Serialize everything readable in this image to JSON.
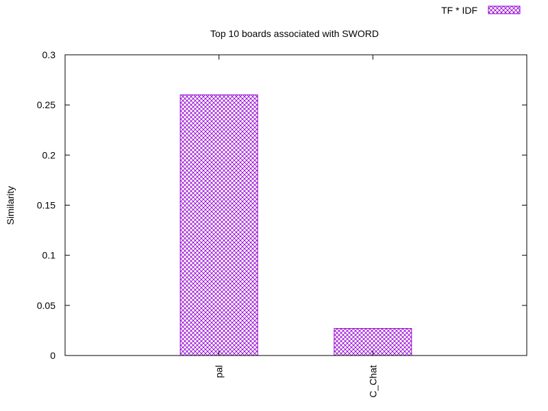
{
  "chart_data": {
    "type": "bar",
    "title": "Top 10 boards associated with SWORD",
    "xlabel": "",
    "ylabel": "Similarity",
    "ylim": [
      0,
      0.3
    ],
    "yticks": [
      "0",
      "0.05",
      "0.1",
      "0.15",
      "0.2",
      "0.25",
      "0.3"
    ],
    "categories": [
      "pal",
      "C_Chat"
    ],
    "series": [
      {
        "name": "TF * IDF",
        "values": [
          0.26,
          0.027
        ],
        "color": "#9400d3",
        "pattern": "crosshatch"
      }
    ],
    "legend_position": "top-right",
    "grid": false
  }
}
